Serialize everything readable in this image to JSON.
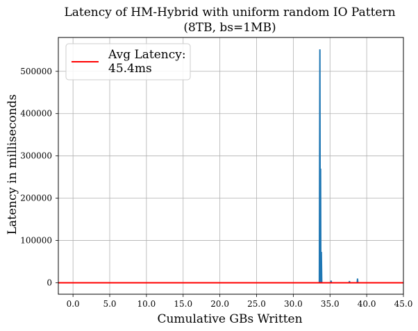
{
  "chart_data": {
    "type": "line",
    "title": "Latency of HM-Hybrid with uniform random IO Pattern",
    "subtitle": "(8TB, bs=1MB)",
    "xlabel": "Cumulative GBs Written",
    "ylabel": "Latency in milliseconds",
    "xlim": [
      -2.0,
      45.0
    ],
    "ylim": [
      -27000,
      580000
    ],
    "xticks": [
      "0.0",
      "5.0",
      "10.0",
      "15.0",
      "20.0",
      "25.0",
      "30.0",
      "35.0",
      "40.0",
      "45.0"
    ],
    "xtick_values": [
      0,
      5,
      10,
      15,
      20,
      25,
      30,
      35,
      40,
      45
    ],
    "highlight_xtick": "45.0",
    "yticks": [
      "0",
      "100000",
      "200000",
      "300000",
      "400000",
      "500000"
    ],
    "ytick_values": [
      0,
      100000,
      200000,
      300000,
      400000,
      500000
    ],
    "grid": true,
    "legend_placement": "top-left",
    "series": [
      {
        "name": "",
        "color": "#1f77b4",
        "x": [
          -2.0,
          33.55,
          33.62,
          33.68,
          33.72,
          33.76,
          33.82,
          33.88,
          34.0,
          35.1,
          35.15,
          35.2,
          37.6,
          37.65,
          37.7,
          38.7,
          38.75,
          38.8,
          45.0
        ],
        "y": [
          0,
          0,
          552000,
          0,
          270000,
          0,
          73000,
          0,
          0,
          0,
          5000,
          0,
          0,
          4000,
          0,
          0,
          10000,
          0,
          0
        ]
      }
    ],
    "avg_line": {
      "name": "Avg Latency:",
      "value_label": "45.4ms",
      "value": 45.4,
      "color": "#ff0000"
    },
    "highlight_color": "#ff0000"
  }
}
